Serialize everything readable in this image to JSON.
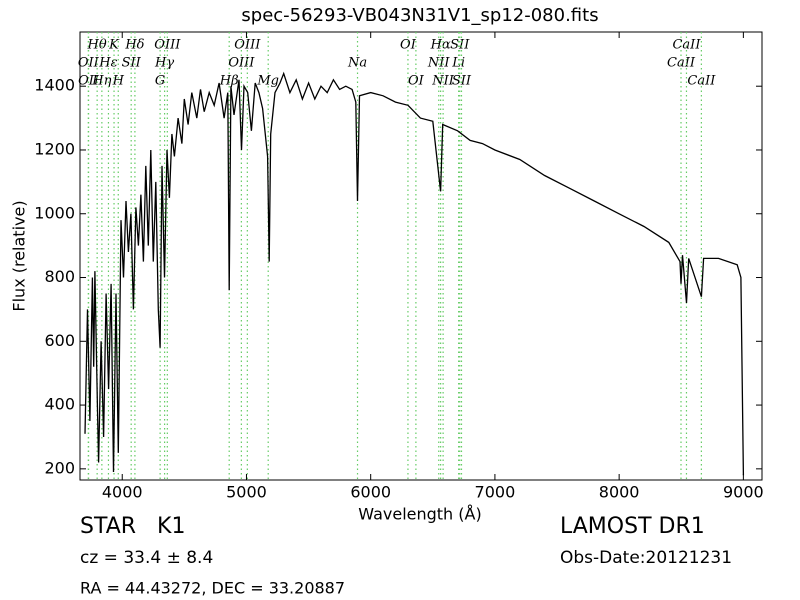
{
  "chart_data": {
    "type": "line",
    "title": "spec-56293-VB043N31V1_sp12-080.fits",
    "xlabel": "Wavelength (Å)",
    "ylabel": "Flux (relative)",
    "xlim": [
      3660,
      9150
    ],
    "ylim": [
      165,
      1570
    ],
    "xticks": [
      4000,
      5000,
      6000,
      7000,
      8000,
      9000
    ],
    "yticks": [
      200,
      400,
      600,
      800,
      1000,
      1200,
      1400
    ],
    "series": [
      {
        "color": "#000000",
        "x": [
          3700,
          3720,
          3740,
          3760,
          3770,
          3780,
          3800,
          3810,
          3830,
          3850,
          3870,
          3890,
          3910,
          3930,
          3950,
          3968,
          3990,
          4010,
          4030,
          4050,
          4070,
          4090,
          4110,
          4130,
          4150,
          4170,
          4190,
          4210,
          4230,
          4250,
          4270,
          4290,
          4305,
          4320,
          4340,
          4360,
          4380,
          4400,
          4420,
          4450,
          4480,
          4500,
          4530,
          4560,
          4600,
          4630,
          4660,
          4700,
          4740,
          4780,
          4820,
          4850,
          4861,
          4875,
          4900,
          4940,
          4960,
          4980,
          5010,
          5040,
          5070,
          5100,
          5130,
          5170,
          5183,
          5195,
          5230,
          5270,
          5300,
          5350,
          5400,
          5450,
          5500,
          5550,
          5600,
          5650,
          5700,
          5750,
          5800,
          5850,
          5880,
          5894,
          5910,
          6000,
          6100,
          6200,
          6300,
          6400,
          6500,
          6563,
          6580,
          6700,
          6800,
          6900,
          7000,
          7200,
          7400,
          7600,
          7800,
          8000,
          8200,
          8400,
          8490,
          8498,
          8510,
          8542,
          8560,
          8662,
          8680,
          8800,
          8950,
          8980,
          9000
        ],
        "values": [
          310,
          700,
          350,
          800,
          520,
          820,
          400,
          220,
          600,
          300,
          750,
          450,
          780,
          190,
          750,
          250,
          980,
          800,
          1040,
          880,
          1000,
          700,
          1020,
          900,
          1060,
          850,
          1150,
          900,
          1200,
          850,
          1100,
          700,
          580,
          1150,
          800,
          1200,
          1050,
          1250,
          1180,
          1300,
          1220,
          1360,
          1280,
          1380,
          1300,
          1390,
          1320,
          1380,
          1340,
          1410,
          1300,
          1380,
          760,
          1400,
          1310,
          1420,
          1200,
          1400,
          1380,
          1260,
          1410,
          1380,
          1330,
          1180,
          850,
          1250,
          1380,
          1410,
          1440,
          1380,
          1420,
          1360,
          1410,
          1360,
          1400,
          1380,
          1420,
          1390,
          1400,
          1390,
          1350,
          1040,
          1370,
          1380,
          1370,
          1350,
          1340,
          1300,
          1290,
          1070,
          1280,
          1260,
          1230,
          1220,
          1200,
          1170,
          1120,
          1080,
          1040,
          1000,
          960,
          910,
          850,
          780,
          870,
          720,
          860,
          740,
          860,
          860,
          840,
          800,
          180
        ]
      }
    ],
    "line_color": "#66cc66",
    "lines": [
      {
        "label": "OII",
        "wavelength": 3727
      },
      {
        "label": "OII",
        "wavelength": 3729
      },
      {
        "label": "Hθ",
        "wavelength": 3798
      },
      {
        "label": "Hη",
        "wavelength": 3836
      },
      {
        "label": "Hε",
        "wavelength": 3889
      },
      {
        "label": "K",
        "wavelength": 3934
      },
      {
        "label": "H",
        "wavelength": 3968
      },
      {
        "label": "SII",
        "wavelength": 4072
      },
      {
        "label": "Hδ",
        "wavelength": 4102
      },
      {
        "label": "G",
        "wavelength": 4305
      },
      {
        "label": "Hγ",
        "wavelength": 4341
      },
      {
        "label": "OIII",
        "wavelength": 4363
      },
      {
        "label": "Hβ",
        "wavelength": 4861
      },
      {
        "label": "OIII",
        "wavelength": 4959
      },
      {
        "label": "OIII",
        "wavelength": 5007
      },
      {
        "label": "Mg",
        "wavelength": 5175
      },
      {
        "label": "Na",
        "wavelength": 5894
      },
      {
        "label": "OI",
        "wavelength": 6300
      },
      {
        "label": "OI",
        "wavelength": 6364
      },
      {
        "label": "NII",
        "wavelength": 6548
      },
      {
        "label": "Hα",
        "wavelength": 6563
      },
      {
        "label": "NII",
        "wavelength": 6583
      },
      {
        "label": "Li",
        "wavelength": 6708
      },
      {
        "label": "SII",
        "wavelength": 6717
      },
      {
        "label": "SII",
        "wavelength": 6731
      },
      {
        "label": "CaII",
        "wavelength": 8498
      },
      {
        "label": "CaII",
        "wavelength": 8542
      },
      {
        "label": "CaII",
        "wavelength": 8662
      }
    ]
  },
  "info": {
    "class": "STAR   K1",
    "survey": "LAMOST DR1",
    "cz": "cz = 33.4 ± 8.4",
    "date": "Obs-Date:20121231",
    "coords": "RA = 44.43272, DEC = 33.20887"
  }
}
